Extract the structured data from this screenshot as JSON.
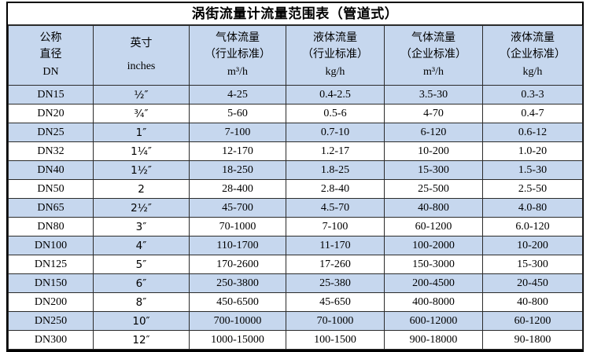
{
  "title": "涡街流量计流量范围表（管道式）",
  "colors": {
    "header_bg": "#c6d7ee",
    "stripe_bg": "#c6d7ee",
    "outer_border": "#000000",
    "grid_line": "#2b2b2b",
    "text": "#000000"
  },
  "table": {
    "header": [
      {
        "lines": [
          "公称",
          "直径",
          "DN"
        ]
      },
      {
        "lines": [
          "英寸",
          "inches"
        ]
      },
      {
        "lines": [
          "气体流量",
          "（行业标准）",
          "m³/h"
        ]
      },
      {
        "lines": [
          "液体流量",
          "（行业标准）",
          "kg/h"
        ]
      },
      {
        "lines": [
          "气体流量",
          "（企业标准）",
          "m³/h"
        ]
      },
      {
        "lines": [
          "液体流量",
          "（企业标准）",
          "kg/h"
        ]
      }
    ],
    "rows": [
      [
        "DN15",
        "½″",
        "4-25",
        "0.4-2.5",
        "3.5-30",
        "0.3-3"
      ],
      [
        "DN20",
        "¾″",
        "5-60",
        "0.5-6",
        "4-70",
        "0.4-7"
      ],
      [
        "DN25",
        "1″",
        "7-100",
        "0.7-10",
        "6-120",
        "0.6-12"
      ],
      [
        "DN32",
        "1¼″",
        "12-170",
        "1.2-17",
        "10-200",
        "1.0-20"
      ],
      [
        "DN40",
        "1½″",
        "18-250",
        "1.8-25",
        "15-300",
        "1.5-30"
      ],
      [
        "DN50",
        "2",
        "28-400",
        "2.8-40",
        "25-500",
        "2.5-50"
      ],
      [
        "DN65",
        "2½″",
        "45-700",
        "4.5-70",
        "40-800",
        "4.0-80"
      ],
      [
        "DN80",
        "3″",
        "70-1000",
        "7-100",
        "60-1200",
        "6.0-120"
      ],
      [
        "DN100",
        "4″",
        "110-1700",
        "11-170",
        "100-2000",
        "10-200"
      ],
      [
        "DN125",
        "5″",
        "170-2600",
        "17-260",
        "150-3000",
        "15-300"
      ],
      [
        "DN150",
        "6″",
        "250-3800",
        "25-380",
        "200-4500",
        "20-450"
      ],
      [
        "DN200",
        "8″",
        "450-6500",
        "45-650",
        "400-8000",
        "40-800"
      ],
      [
        "DN250",
        "10″",
        "700-10000",
        "70-1000",
        "600-12000",
        "60-1200"
      ],
      [
        "DN300",
        "12″",
        "1000-15000",
        "100-1500",
        "900-18000",
        "90-1800"
      ]
    ]
  }
}
